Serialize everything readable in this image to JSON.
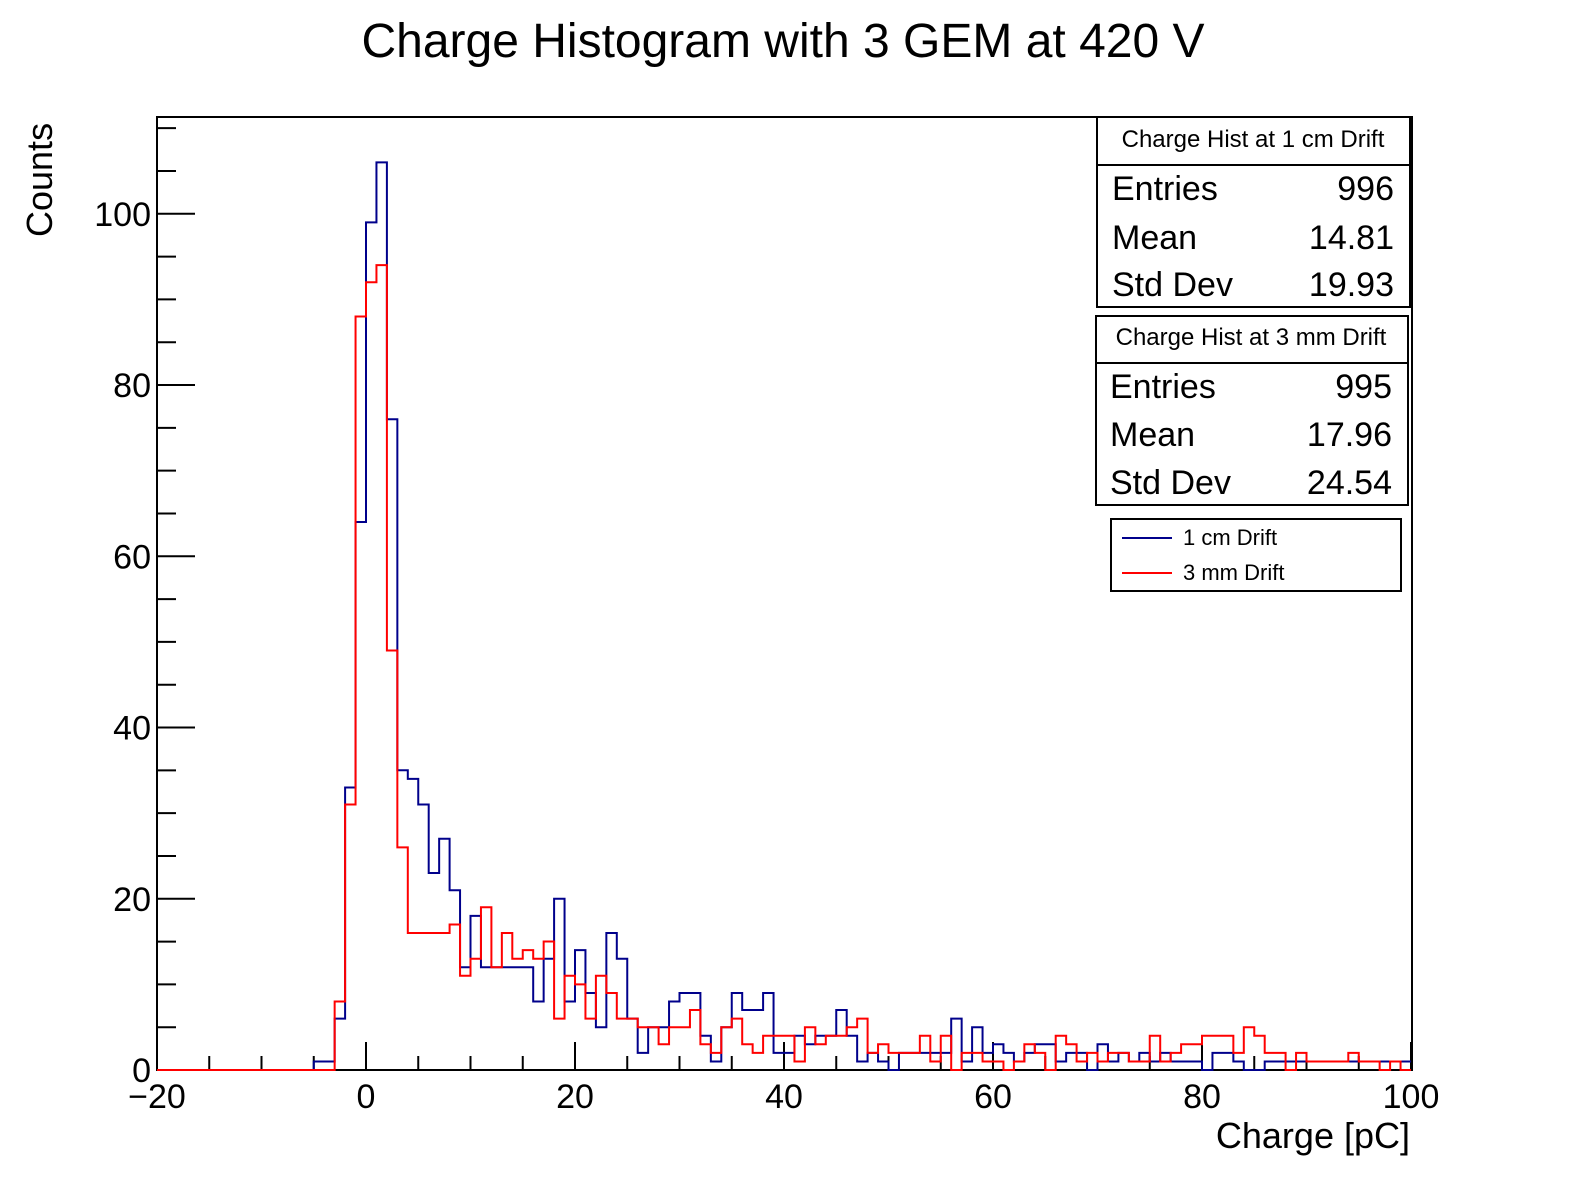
{
  "chart_data": {
    "type": "histogram",
    "title": "Charge Histogram with 3 GEM at 420 V",
    "xlabel": "Charge [pC]",
    "ylabel": "Counts",
    "xlim": [
      -20,
      100
    ],
    "ylim": [
      0,
      111.3
    ],
    "bin_width": 1,
    "x_ticks": [
      -20,
      0,
      20,
      40,
      60,
      80,
      100
    ],
    "x_tick_labels": [
      "−20",
      "0",
      "20",
      "40",
      "60",
      "80",
      "100"
    ],
    "y_ticks": [
      0,
      20,
      40,
      60,
      80,
      100
    ],
    "y_tick_labels": [
      "0",
      "20",
      "40",
      "60",
      "80",
      "100"
    ],
    "grid": false,
    "series": [
      {
        "name": "1 cm Drift",
        "color": "#00008b",
        "bin_start": -5,
        "counts": [
          1,
          1,
          6,
          33,
          64,
          99,
          106,
          76,
          35,
          34,
          31,
          23,
          27,
          21,
          12,
          18,
          12,
          12,
          12,
          12,
          12,
          8,
          13,
          20,
          8,
          14,
          9,
          5,
          16,
          13,
          6,
          2,
          5,
          5,
          8,
          9,
          9,
          4,
          1,
          5,
          9,
          7,
          7,
          9,
          2,
          2,
          4,
          3,
          4,
          4,
          7,
          4,
          1,
          2,
          1,
          0,
          2,
          2,
          2,
          2,
          2,
          6,
          1,
          5,
          2,
          3,
          2,
          1,
          2,
          3,
          3,
          1,
          2,
          2,
          0,
          3,
          1,
          2,
          1,
          2,
          1,
          2,
          1,
          1,
          1,
          0,
          2,
          2,
          1,
          0,
          0,
          1,
          1,
          1,
          1,
          1,
          1,
          1,
          1,
          1,
          1,
          1,
          1,
          1,
          1
        ]
      },
      {
        "name": "3 mm Drift",
        "color": "#ff0000",
        "bin_start": -5,
        "counts": [
          0,
          0,
          8,
          31,
          88,
          92,
          94,
          49,
          26,
          16,
          16,
          16,
          16,
          17,
          11,
          13,
          19,
          12,
          16,
          13,
          14,
          13,
          15,
          6,
          11,
          10,
          6,
          11,
          9,
          6,
          6,
          5,
          5,
          3,
          5,
          5,
          7,
          3,
          2,
          5,
          6,
          3,
          2,
          4,
          4,
          4,
          1,
          5,
          3,
          4,
          4,
          5,
          6,
          2,
          3,
          2,
          2,
          2,
          4,
          1,
          4,
          0,
          2,
          2,
          1,
          1,
          0,
          1,
          3,
          2,
          0,
          4,
          3,
          1,
          2,
          1,
          2,
          2,
          1,
          1,
          4,
          1,
          2,
          3,
          3,
          4,
          4,
          4,
          2,
          5,
          4,
          2,
          2,
          0,
          2,
          1,
          1,
          1,
          1,
          2,
          1,
          1,
          0,
          1,
          0,
          3
        ]
      }
    ],
    "stats_boxes": [
      {
        "title": "Charge Hist at 1 cm Drift",
        "rows": [
          {
            "label": "Entries",
            "value": "996"
          },
          {
            "label": "Mean",
            "value": "14.81"
          },
          {
            "label": "Std Dev",
            "value": "19.93"
          }
        ]
      },
      {
        "title": "Charge Hist at 3 mm Drift",
        "rows": [
          {
            "label": "Entries",
            "value": "995"
          },
          {
            "label": "Mean",
            "value": "17.96"
          },
          {
            "label": "Std Dev",
            "value": "24.54"
          }
        ]
      }
    ],
    "legend": {
      "position": "top-right",
      "entries": [
        {
          "label": "1 cm Drift",
          "color": "#00008b"
        },
        {
          "label": "3 mm Drift",
          "color": "#ff0000"
        }
      ]
    }
  }
}
